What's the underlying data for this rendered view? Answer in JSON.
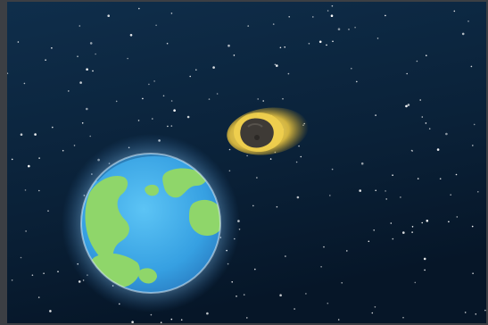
{
  "scene": {
    "subject": "earth-and-asteroid",
    "colors": {
      "space_top": "#0d2a44",
      "space_bottom": "#07192c",
      "earth_ocean": "#3aa6e6",
      "earth_land": "#8fd66a",
      "earth_glow": "#bfe6ff",
      "asteroid_fire": "#f2d35a",
      "asteroid_rock": "#3e3a36"
    }
  }
}
